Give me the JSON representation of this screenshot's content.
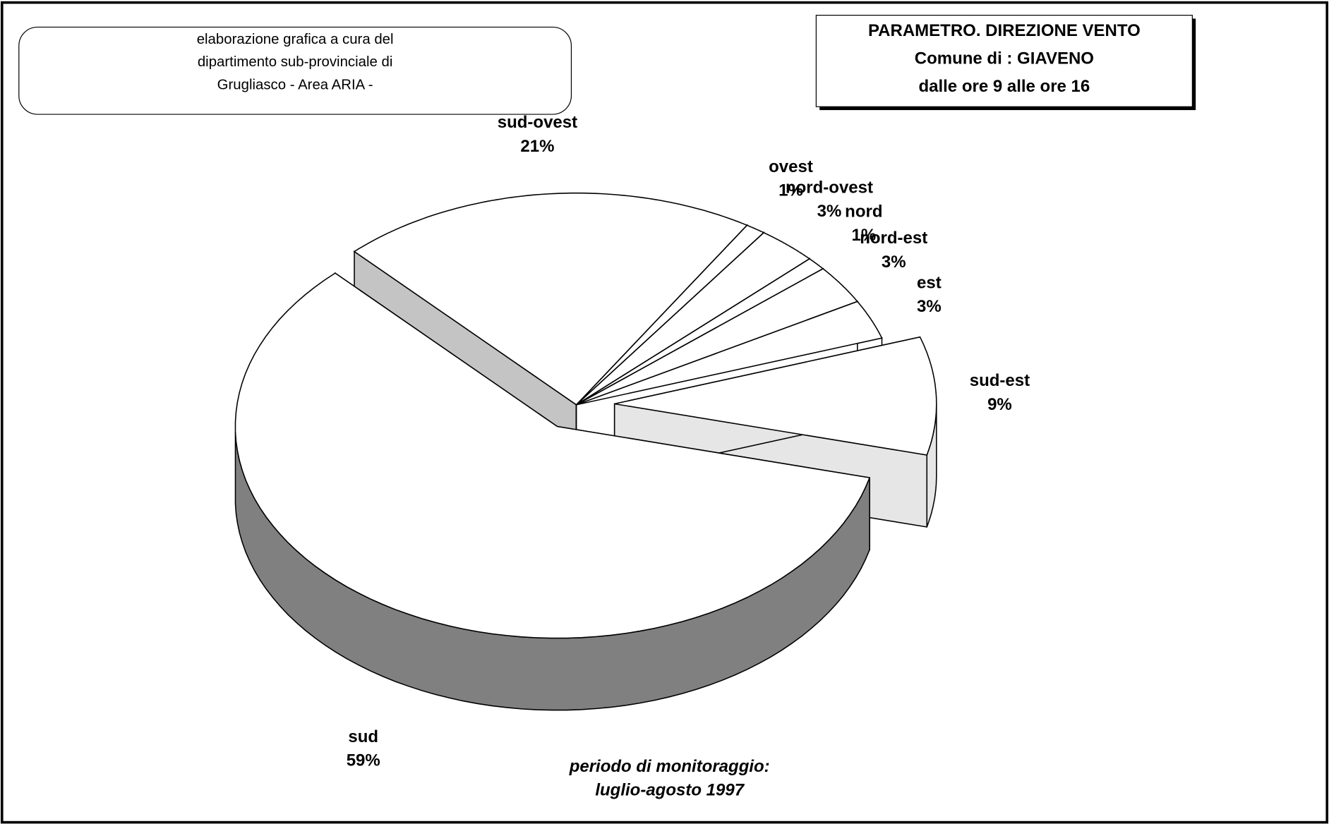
{
  "header": {
    "info": [
      "elaborazione grafica a cura del",
      "dipartimento sub-provinciale di",
      "Grugliasco - Area ARIA -"
    ],
    "title": [
      "PARAMETRO. DIREZIONE VENTO",
      "Comune di :  GIAVENO",
      "dalle ore 9 alle ore 16"
    ]
  },
  "chart_data": {
    "type": "pie",
    "categories": [
      "sud-est",
      "est",
      "nord-est",
      "nord",
      "nord-ovest",
      "ovest",
      "sud-ovest",
      "sud"
    ],
    "values": [
      9,
      3,
      3,
      1,
      3,
      1,
      21,
      59
    ],
    "value_labels": [
      "9%",
      "3%",
      "3%",
      "1%",
      "3%",
      "1%",
      "21%",
      "59%"
    ],
    "explode": [
      true,
      false,
      false,
      false,
      false,
      false,
      false,
      true
    ],
    "side_colors": [
      "#e6e6e6",
      "#ffffff",
      "#ffffff",
      "#ffffff",
      "#ffffff",
      "#ffffff",
      "#c4c4c4",
      "#808080"
    ],
    "top_color": "#ffffff"
  },
  "footer": [
    "periodo di monitoraggio:",
    "luglio-agosto 1997"
  ]
}
